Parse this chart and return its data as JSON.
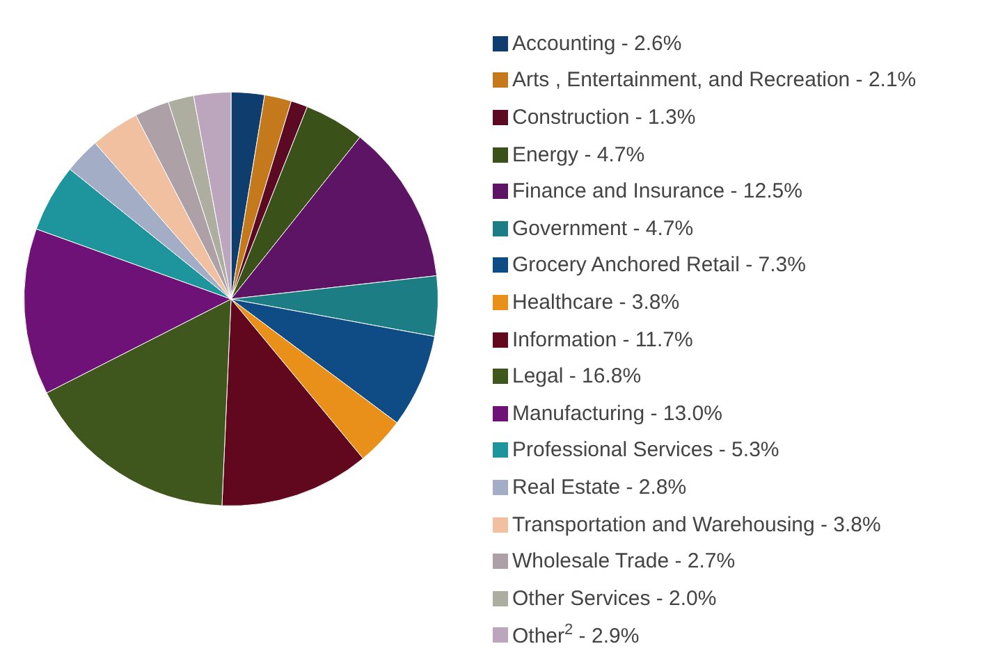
{
  "chart_data": {
    "type": "pie",
    "legend": "right",
    "categories": [
      "Accounting - 2.6%",
      "Arts , Entertainment, and Recreation - 2.1%",
      "Construction - 1.3%",
      "Energy - 4.7%",
      "Finance and Insurance - 12.5%",
      "Government - 4.7%",
      "Grocery Anchored Retail - 7.3%",
      "Healthcare - 3.8%",
      "Information - 11.7%",
      "Legal - 16.8%",
      "Manufacturing - 13.0%",
      "Professional Services - 5.3%",
      "Real Estate - 2.8%",
      "Transportation and Warehousing - 3.8%",
      "Wholesale Trade - 2.7%",
      "Other Services - 2.0%",
      "Other$^{2}$ - 2.9%"
    ],
    "values": [
      2.6,
      2.1,
      1.3,
      4.7,
      12.5,
      4.7,
      7.3,
      3.8,
      11.7,
      16.8,
      13.0,
      5.3,
      2.8,
      3.8,
      2.7,
      2.0,
      2.9
    ],
    "colors": [
      "#0f3d6e",
      "#c47a1c",
      "#5c0a24",
      "#3a521a",
      "#5e1464",
      "#1d7d84",
      "#0f4c85",
      "#e8901a",
      "#62081e",
      "#3f561c",
      "#6e1278",
      "#1e949c",
      "#a3aec6",
      "#f0c0a0",
      "#ada0a6",
      "#aeaea0",
      "#bba6be"
    ]
  }
}
